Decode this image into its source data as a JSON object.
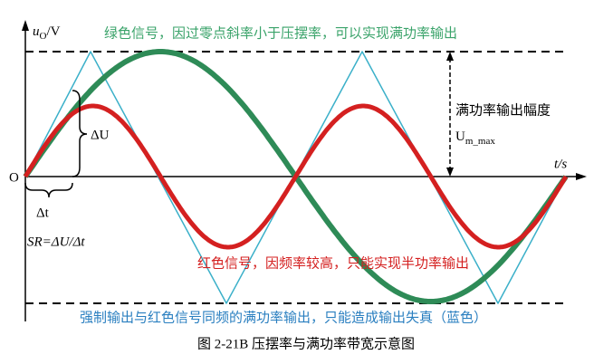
{
  "figure": {
    "y_axis_label": {
      "symbol": "u",
      "subscript": "O",
      "unit": "/V"
    },
    "origin_label": "O",
    "x_axis_label": "t/s",
    "green_note": "绿色信号，因过零点斜率小于压摆率，可以实现满功率输出",
    "amplitude_label": "满功率输出幅度",
    "amplitude_symbol": {
      "main": "U",
      "subscript": "m_max"
    },
    "delta_u": "ΔU",
    "delta_t": "Δt",
    "slew_rate": "SR=ΔU/Δt",
    "red_note": "红色信号，因频率较高，只能实现半功率输出",
    "blue_note": "强制输出与红色信号同频的满功率输出，只能造成输出失真（蓝色）",
    "caption": "图 2-21B  压摆率与满功率带宽示意图"
  }
}
